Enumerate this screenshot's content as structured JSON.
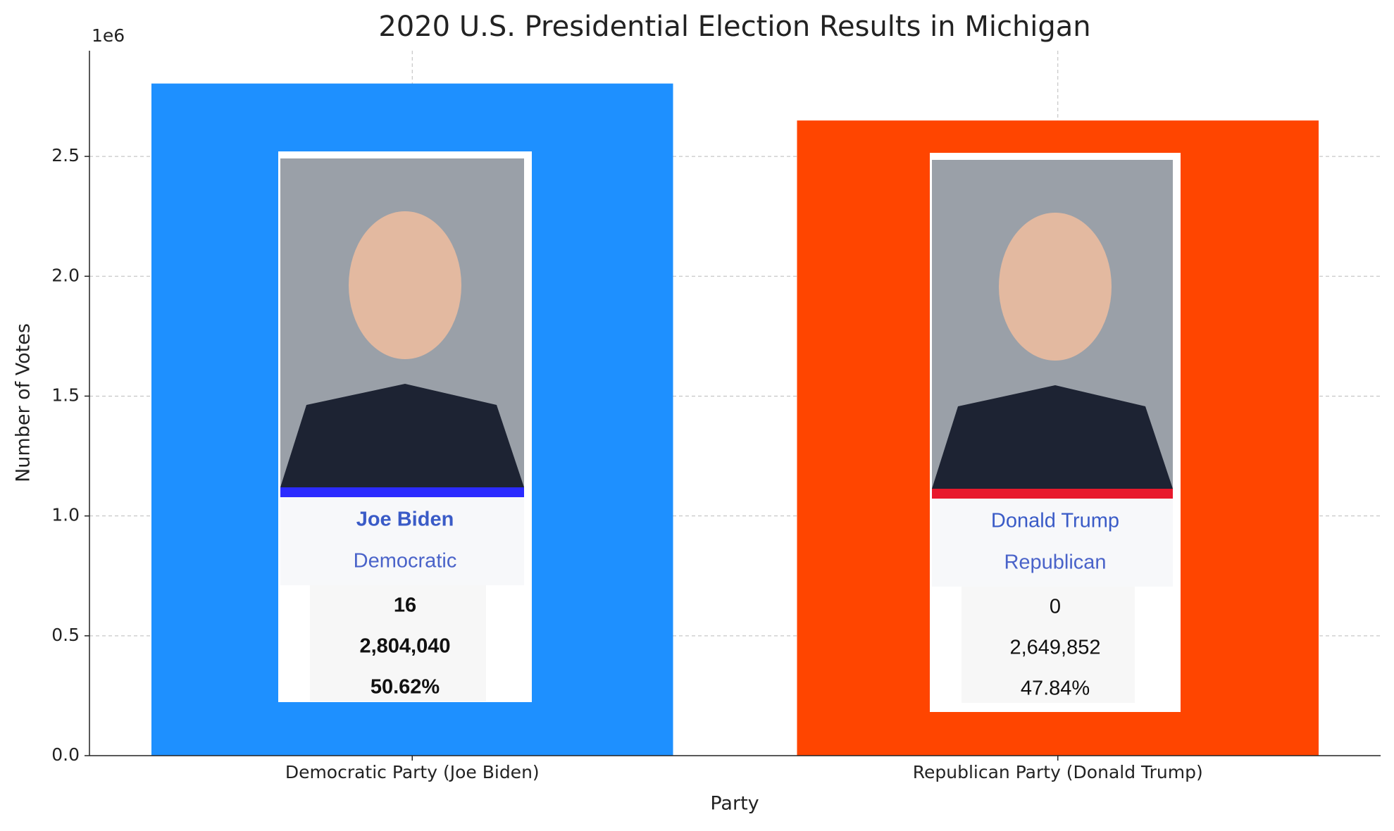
{
  "chart_data": {
    "type": "bar",
    "title": "2020 U.S. Presidential Election Results in Michigan",
    "axis_multiplier": "1e6",
    "xlabel": "Party",
    "ylabel": "Number of Votes",
    "categories": [
      "Democratic Party (Joe Biden)",
      "Republican Party (Donald Trump)"
    ],
    "values": [
      2804040,
      2649852
    ],
    "colors": [
      "#1e90ff",
      "#ff4500"
    ],
    "ylim": [
      0,
      2941000
    ],
    "yticks": [
      {
        "value": 0,
        "label": "0.0"
      },
      {
        "value": 500000,
        "label": "0.5"
      },
      {
        "value": 1000000,
        "label": "1.0"
      },
      {
        "value": 1500000,
        "label": "1.5"
      },
      {
        "value": 2000000,
        "label": "2.0"
      },
      {
        "value": 2500000,
        "label": "2.5"
      }
    ],
    "grid": true,
    "cards": [
      {
        "name": "Joe Biden",
        "party": "Democratic",
        "electoral": "16",
        "votes": "2,804,040",
        "percent": "50.62%",
        "stripe": "#2b2bff",
        "bold": true
      },
      {
        "name": "Donald Trump",
        "party": "Republican",
        "electoral": "0",
        "votes": "2,649,852",
        "percent": "47.84%",
        "stripe": "#e8192c",
        "bold": false
      }
    ]
  }
}
